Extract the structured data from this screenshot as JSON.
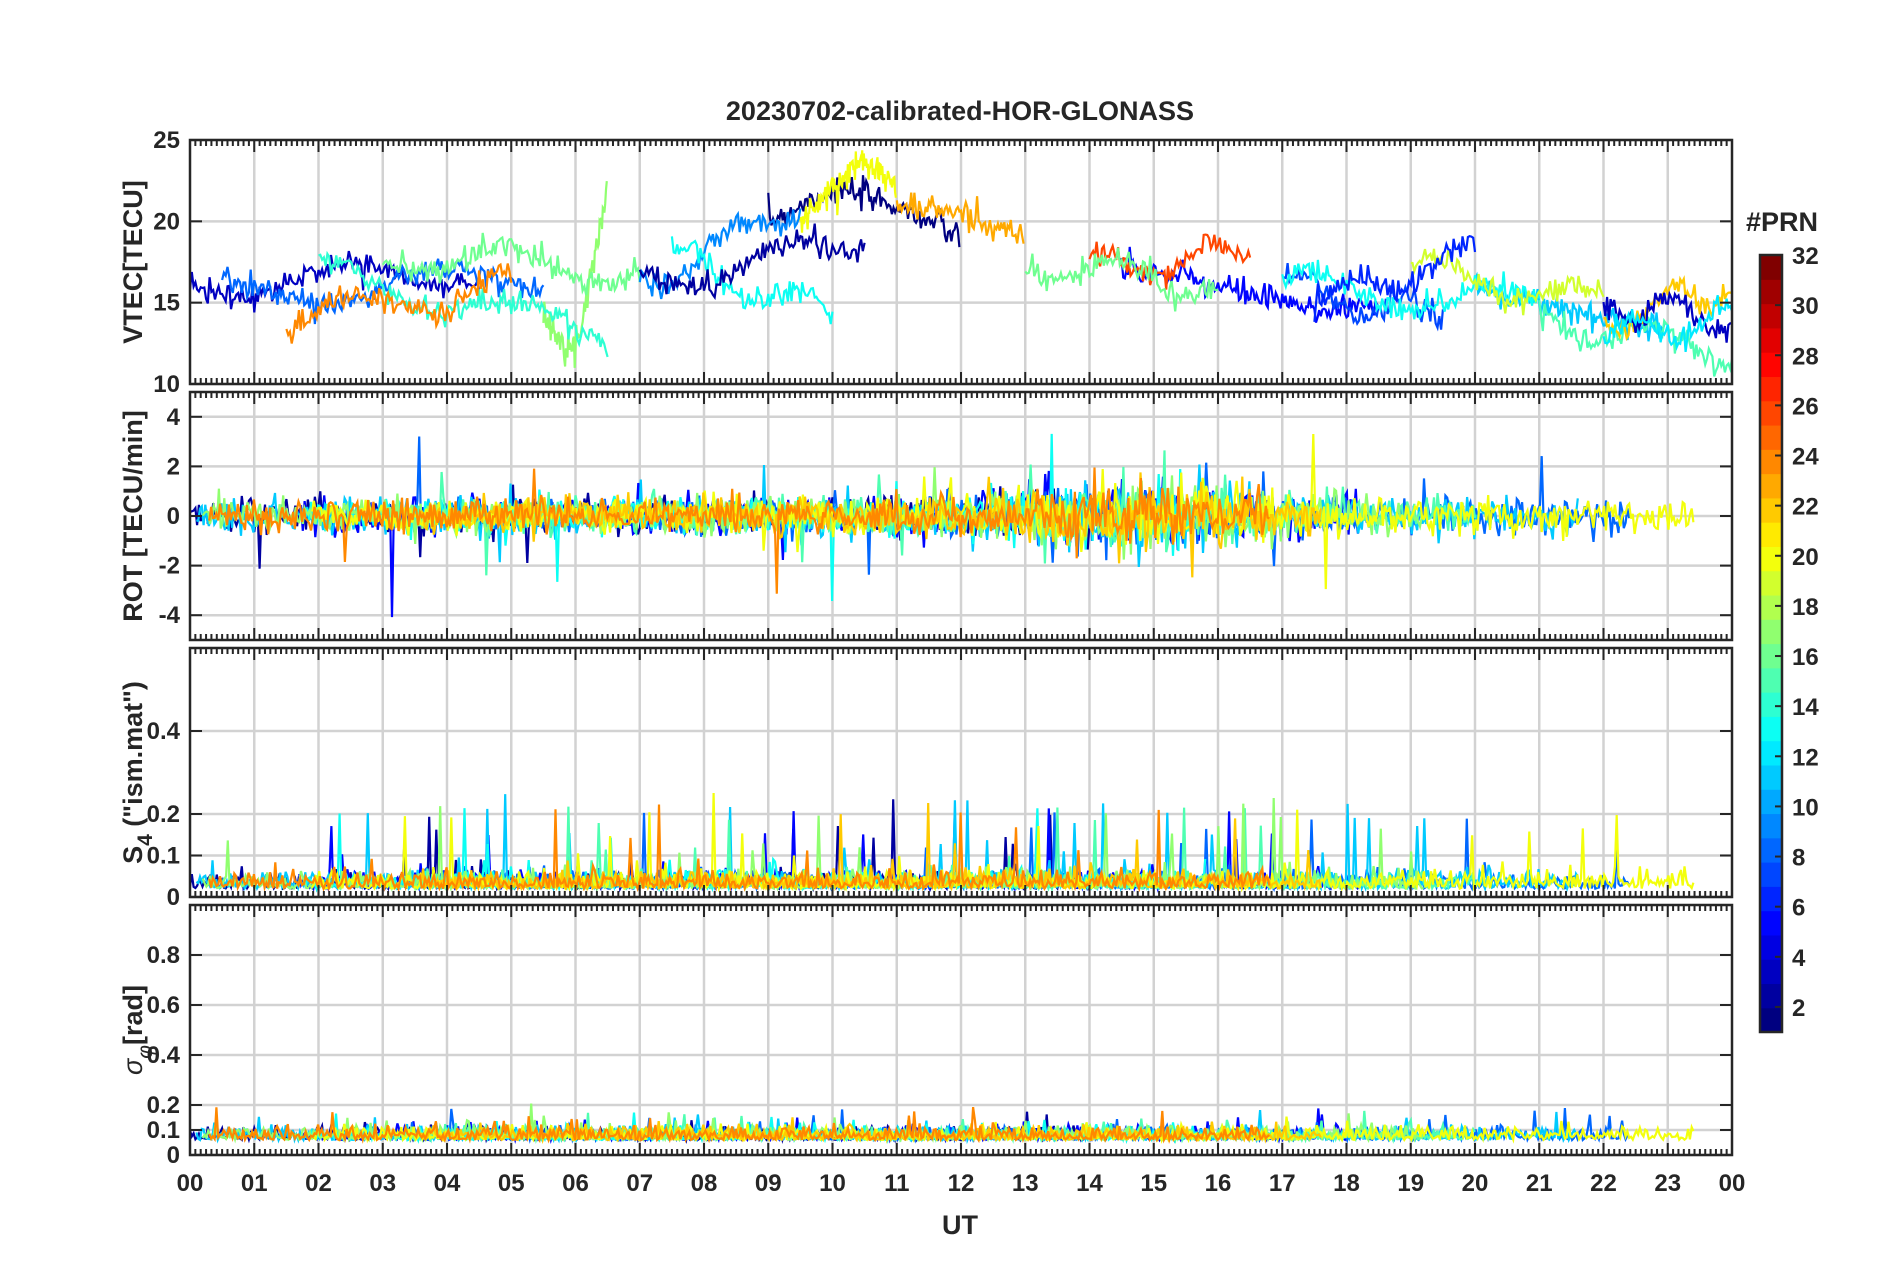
{
  "chart_data": [
    {
      "type": "line",
      "title": "20230702-calibrated-HOR-GLONASS",
      "ylabel": "VTEC[TECU]",
      "ylim": [
        10,
        25
      ],
      "yticks": [
        "10",
        "15",
        "20",
        "25"
      ],
      "grid": true,
      "series_color_by": "PRN",
      "series": [
        {
          "prn": 1,
          "x": [
            9.0,
            10.0,
            11.0,
            12.0
          ],
          "values": [
            20,
            22,
            21,
            19
          ]
        },
        {
          "prn": 5,
          "x": [
            14.5,
            15.5,
            16.5,
            17.5,
            18.5
          ],
          "values": [
            17,
            16.5,
            15.5,
            14.5,
            15
          ]
        },
        {
          "prn": 11,
          "x": [
            20.0,
            21.0,
            22.0,
            23.0
          ],
          "values": [
            16,
            15,
            14,
            13.5
          ]
        },
        {
          "prn": 17,
          "x": [
            5.5,
            6.0,
            6.5
          ],
          "values": [
            14,
            12,
            22
          ]
        },
        {
          "prn": 20,
          "x": [
            9.5,
            10.0,
            10.5,
            11.0
          ],
          "values": [
            20,
            22,
            24,
            22
          ]
        },
        {
          "prn": 23,
          "x": [
            11.0,
            12.0,
            13.0
          ],
          "values": [
            21,
            20.5,
            19
          ]
        }
      ]
    },
    {
      "type": "line",
      "ylabel": "ROT [TECU/min]",
      "ylim": [
        -5,
        5
      ],
      "yticks": [
        "-4",
        "-2",
        "0",
        "2",
        "4"
      ],
      "grid": true
    },
    {
      "type": "line",
      "ylabel": "S4 (\"ism.mat\")",
      "ylabel_main": "S",
      "ylabel_sub": "4",
      "ylabel_rest": " (\"ism.mat\")",
      "ylim": [
        0,
        0.6
      ],
      "yticks": [
        "0",
        "0.1",
        "0.2",
        "0.4"
      ],
      "grid": true
    },
    {
      "type": "line",
      "ylabel": "σφ[rad]",
      "ylabel_main": "σ",
      "ylabel_sub": "φ",
      "ylabel_rest": "[rad]",
      "ylim": [
        0,
        1
      ],
      "yticks": [
        "0",
        "0.1",
        "0.2",
        "0.4",
        "0.6",
        "0.8"
      ],
      "grid": true
    }
  ],
  "xaxis": {
    "label": "UT",
    "ticks": [
      "00",
      "01",
      "02",
      "03",
      "04",
      "05",
      "06",
      "07",
      "08",
      "09",
      "10",
      "11",
      "12",
      "13",
      "14",
      "15",
      "16",
      "17",
      "18",
      "19",
      "20",
      "21",
      "22",
      "23",
      "00"
    ],
    "range_hours": [
      0,
      24
    ]
  },
  "colorbar": {
    "title": "#PRN",
    "range": [
      1,
      32
    ],
    "ticks": [
      "2",
      "4",
      "6",
      "8",
      "10",
      "12",
      "14",
      "16",
      "18",
      "20",
      "22",
      "24",
      "26",
      "28",
      "30",
      "32"
    ],
    "colormap": "jet"
  }
}
